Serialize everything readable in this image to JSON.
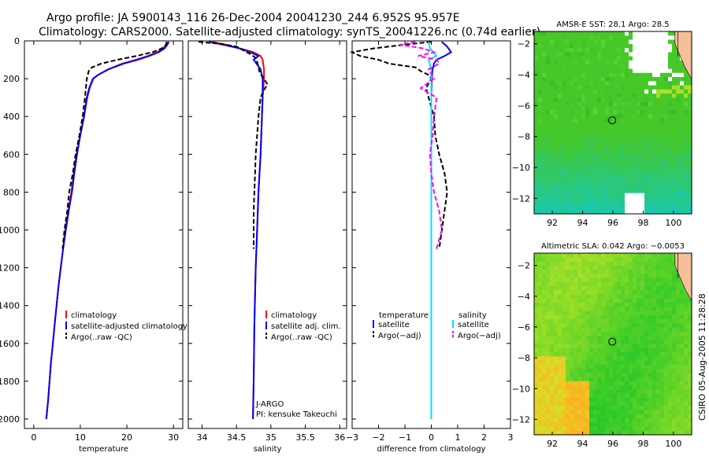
{
  "header": {
    "line1": "Argo profile: JA 5900143_116 26-Dec-2004 20041230_244 6.952S 95.957E",
    "line2": "Climatology: CARS2000. Satellite-adjusted climatology: synTS_20041226.nc (0.74d earlier)"
  },
  "footer_stamp": "CSIRO 05-Aug-2005 11:28:28",
  "colors": {
    "climatology": "#ff0000",
    "satellite": "#0000ff",
    "argo": "#000000",
    "salinity_sat": "#00e0ff",
    "salinity_argo": "#ff00ff",
    "land": "#f5bf9a",
    "missing": "#ffffff"
  },
  "chart_data": [
    {
      "id": "temperature",
      "type": "line",
      "xlabel": "temperature",
      "xlim": [
        -2,
        32
      ],
      "ylim": [
        2050,
        0
      ],
      "xticks": [
        0,
        10,
        20,
        30
      ],
      "yticks": [
        0,
        200,
        400,
        600,
        800,
        1000,
        1200,
        1400,
        1600,
        1800,
        2000
      ],
      "legend": [
        "climatology",
        "satellite-adjusted climatology",
        "Argo(..raw -QC)"
      ],
      "series": [
        {
          "name": "climatology",
          "depth": [
            5,
            20,
            40,
            60,
            80,
            100,
            120,
            150,
            180,
            200,
            250,
            300,
            400,
            500,
            600,
            700,
            800,
            900,
            1000,
            1100,
            1200,
            1300,
            1400,
            1500,
            1600,
            1700,
            1800,
            1900,
            2000
          ],
          "values": [
            28.5,
            28.4,
            27.8,
            26.5,
            24.5,
            22,
            19,
            16,
            13.8,
            12.8,
            12,
            11.5,
            10.8,
            10,
            9.2,
            8.6,
            8.1,
            7.4,
            6.8,
            6.3,
            5.8,
            5.3,
            4.9,
            4.5,
            4.1,
            3.7,
            3.4,
            3.1,
            2.7
          ]
        },
        {
          "name": "satellite",
          "depth": [
            5,
            20,
            40,
            60,
            80,
            100,
            120,
            150,
            180,
            200,
            250,
            300,
            400,
            500,
            600,
            700,
            800,
            900,
            1000,
            1100,
            1200,
            1300,
            1400,
            1500,
            1600,
            1700,
            1800,
            1900,
            2000
          ],
          "values": [
            29.0,
            28.7,
            28.1,
            26.8,
            24.8,
            22.3,
            19.3,
            16.1,
            13.8,
            12.7,
            11.9,
            11.4,
            10.8,
            10,
            9.3,
            8.7,
            8.2,
            7.5,
            6.9,
            6.3,
            5.8,
            5.3,
            4.9,
            4.5,
            4.1,
            3.7,
            3.4,
            3.1,
            2.7
          ]
        },
        {
          "name": "Argo",
          "depth": [
            5,
            20,
            40,
            60,
            80,
            100,
            120,
            140,
            160,
            180,
            200,
            250,
            300,
            400,
            500,
            600,
            700,
            800,
            900,
            1000,
            1100
          ],
          "values": [
            28.6,
            28.4,
            27.5,
            25.5,
            22,
            18,
            14.5,
            12.5,
            11.8,
            11.6,
            11.4,
            11.2,
            11.0,
            10.5,
            9.8,
            9.0,
            8.4,
            7.6,
            7.2,
            6.6,
            6.2
          ]
        }
      ]
    },
    {
      "id": "salinity",
      "type": "line",
      "xlabel": "salinity",
      "xlim": [
        33.8,
        36.1
      ],
      "ylim": [
        2050,
        0
      ],
      "xticks": [
        "34",
        "34.5",
        "35",
        "35.5",
        "36"
      ],
      "legend": [
        "climatology",
        "satellite adj. clim.",
        "Argo(..raw -QC)"
      ],
      "annotation": [
        "J-ARGO",
        "PI: kensuke Takeuchi"
      ],
      "series": [
        {
          "name": "climatology",
          "depth": [
            5,
            20,
            40,
            60,
            80,
            100,
            150,
            200,
            300,
            400,
            600,
            800,
            1000,
            1200,
            1500,
            1800,
            2000
          ],
          "values": [
            34.15,
            34.35,
            34.55,
            34.75,
            34.85,
            34.88,
            34.9,
            34.9,
            34.88,
            34.87,
            34.85,
            34.82,
            34.8,
            34.78,
            34.76,
            34.75,
            34.74
          ]
        },
        {
          "name": "satellite",
          "depth": [
            5,
            20,
            40,
            60,
            80,
            100,
            150,
            200,
            300,
            400,
            600,
            800,
            1000,
            1200,
            1500,
            1800,
            2000
          ],
          "values": [
            34.1,
            34.3,
            34.55,
            34.7,
            34.82,
            34.75,
            34.85,
            34.88,
            34.88,
            34.87,
            34.85,
            34.82,
            34.8,
            34.78,
            34.76,
            34.75,
            34.74
          ]
        },
        {
          "name": "Argo",
          "depth": [
            5,
            15,
            30,
            50,
            70,
            90,
            110,
            140,
            170,
            200,
            230,
            260,
            300,
            400,
            500,
            600,
            700,
            800,
            900,
            1000,
            1100
          ],
          "values": [
            33.95,
            34.25,
            34.5,
            34.6,
            34.7,
            34.78,
            34.8,
            34.82,
            34.84,
            34.9,
            34.95,
            34.9,
            34.85,
            34.82,
            34.8,
            34.78,
            34.77,
            34.76,
            34.75,
            34.75,
            34.75
          ]
        }
      ]
    },
    {
      "id": "difference",
      "type": "line",
      "xlabel": "difference from climatology",
      "xlim": [
        -3,
        3
      ],
      "ylim": [
        2050,
        0
      ],
      "xticks": [
        "−3",
        "−2",
        "−1",
        "0",
        "1",
        "2",
        "3"
      ],
      "legend_left_title": "temperature",
      "legend_right_title": "salinity",
      "legend": [
        "satellite",
        "Argo(−adj)",
        "satellite",
        "Argo(−adj)"
      ],
      "series": [
        {
          "name": "temperature satellite",
          "depth": [
            5,
            30,
            60,
            80,
            100,
            120,
            150,
            200,
            300,
            400,
            600,
            800,
            1000,
            1500,
            2000
          ],
          "values": [
            0.4,
            0.6,
            0.75,
            0.5,
            0.2,
            0.1,
            0.05,
            0.02,
            0,
            0,
            0,
            0,
            0,
            0,
            0
          ]
        },
        {
          "name": "temperature Argo",
          "depth": [
            5,
            20,
            40,
            60,
            80,
            100,
            120,
            140,
            160,
            180,
            200,
            250,
            300,
            400,
            500,
            600,
            700,
            800,
            900,
            1000,
            1100
          ],
          "values": [
            0,
            -1,
            -2.2,
            -3.0,
            -2.7,
            -2.0,
            -1.6,
            -0.6,
            -0.4,
            -0.1,
            0,
            -0.2,
            -0.1,
            0.1,
            0.15,
            0.3,
            0.5,
            0.6,
            0.5,
            0.4,
            0.3
          ]
        },
        {
          "name": "salinity satellite",
          "depth": [
            5,
            40,
            80,
            100,
            150,
            200,
            300,
            500,
            800,
            1000,
            1500,
            2000
          ],
          "values": [
            -0.1,
            -0.05,
            0.2,
            -0.1,
            0,
            0,
            0,
            0,
            0,
            0,
            0,
            0
          ]
        },
        {
          "name": "salinity Argo",
          "depth": [
            5,
            20,
            40,
            60,
            80,
            100,
            120,
            150,
            200,
            250,
            300,
            400,
            500,
            600,
            700,
            800,
            900,
            1000,
            1100
          ],
          "values": [
            -0.6,
            -1.2,
            -0.3,
            0.1,
            -0.5,
            0.2,
            0.3,
            -0.1,
            0.1,
            -0.4,
            0.2,
            0.1,
            0.05,
            -0.05,
            0,
            0.1,
            0.3,
            0.4,
            0.2
          ]
        }
      ]
    },
    {
      "id": "sst_map",
      "type": "heatmap",
      "title": "AMSR-E SST: 28.1 Argo: 28.5",
      "xticks": [
        "92",
        "94",
        "96",
        "98",
        "100"
      ],
      "yticks": [
        "−2",
        "−4",
        "−6",
        "−8",
        "−10",
        "−12"
      ],
      "xlim": [
        90.8,
        101.2
      ],
      "ylim": [
        -13,
        -1.2
      ],
      "marker": {
        "lon": 95.957,
        "lat": -6.952
      }
    },
    {
      "id": "sla_map",
      "type": "heatmap",
      "title": "Altimetric SLA: 0.042 Argo: −0.0053",
      "xticks": [
        "92",
        "94",
        "96",
        "98",
        "100"
      ],
      "yticks": [
        "−2",
        "−4",
        "−6",
        "−8",
        "−10",
        "−12"
      ],
      "xlim": [
        90.8,
        101.2
      ],
      "ylim": [
        -13,
        -1.2
      ],
      "marker": {
        "lon": 95.957,
        "lat": -6.952
      }
    }
  ]
}
